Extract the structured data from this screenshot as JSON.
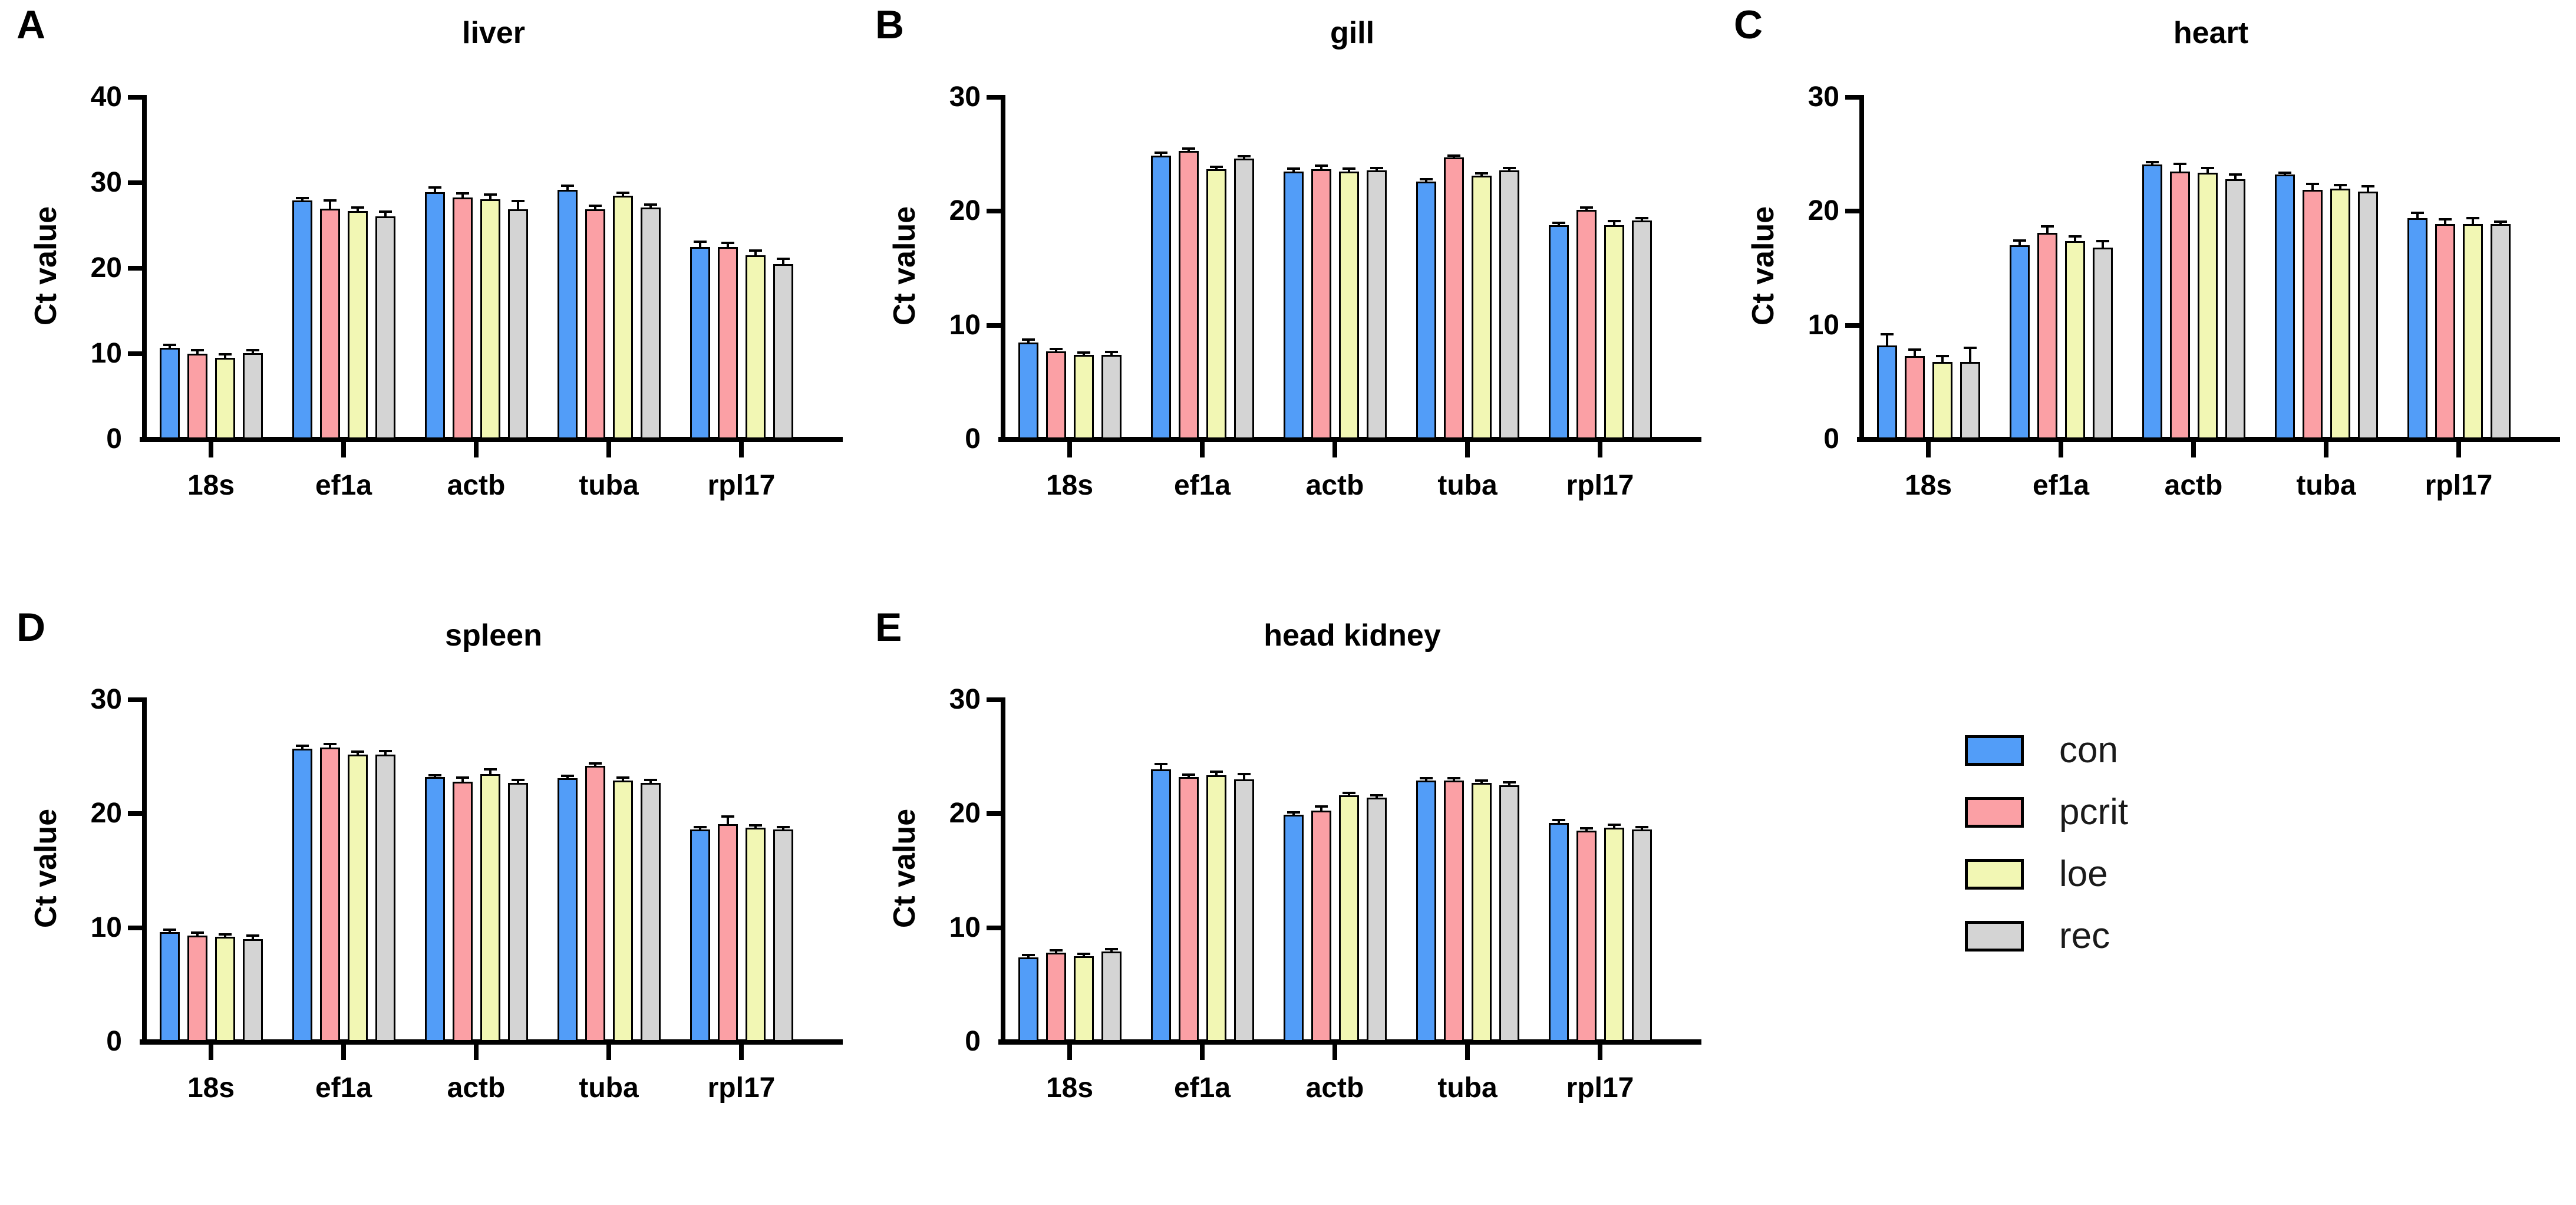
{
  "figure_title": "",
  "legend": {
    "items": [
      {
        "label": "con",
        "color": "#529DF8"
      },
      {
        "label": "pcrit",
        "color": "#FBA0A5"
      },
      {
        "label": "loe",
        "color": "#F2F7B4"
      },
      {
        "label": "rec",
        "color": "#D4D4D4"
      }
    ],
    "border_color": "#000000"
  },
  "chart_data": [
    {
      "type": "bar",
      "letter": "A",
      "title": "liver",
      "ylabel": "Ct value",
      "ylim": [
        0,
        40
      ],
      "yticks": [
        0,
        10,
        20,
        30,
        40
      ],
      "categories": [
        "18s",
        "ef1a",
        "actb",
        "tuba",
        "rpl17"
      ],
      "series": [
        {
          "name": "con",
          "color": "#529DF8",
          "values": [
            10.7,
            27.9,
            28.9,
            29.2,
            22.5
          ],
          "errors": [
            0.2,
            0.2,
            0.4,
            0.3,
            0.5
          ]
        },
        {
          "name": "pcrit",
          "color": "#FBA0A5",
          "values": [
            10.0,
            27.0,
            28.3,
            26.9,
            22.5
          ],
          "errors": [
            0.3,
            0.8,
            0.3,
            0.3,
            0.3
          ]
        },
        {
          "name": "loe",
          "color": "#F2F7B4",
          "values": [
            9.5,
            26.7,
            28.1,
            28.5,
            21.5
          ],
          "errors": [
            0.3,
            0.3,
            0.4,
            0.2,
            0.4
          ]
        },
        {
          "name": "rec",
          "color": "#D4D4D4",
          "values": [
            10.1,
            26.1,
            26.9,
            27.1,
            20.5
          ],
          "errors": [
            0.2,
            0.4,
            0.8,
            0.2,
            0.5
          ]
        }
      ],
      "grid": false,
      "legend_position": "none"
    },
    {
      "type": "bar",
      "letter": "B",
      "title": "gill",
      "ylabel": "Ct value",
      "ylim": [
        0,
        30
      ],
      "yticks": [
        0,
        10,
        20,
        30
      ],
      "categories": [
        "18s",
        "ef1a",
        "actb",
        "tuba",
        "rpl17"
      ],
      "series": [
        {
          "name": "con",
          "color": "#529DF8",
          "values": [
            8.5,
            24.9,
            23.5,
            22.6,
            18.8
          ],
          "errors": [
            0.15,
            0.15,
            0.15,
            0.1,
            0.1
          ]
        },
        {
          "name": "pcrit",
          "color": "#FBA0A5",
          "values": [
            7.7,
            25.3,
            23.7,
            24.7,
            20.1
          ],
          "errors": [
            0.1,
            0.1,
            0.2,
            0.1,
            0.15
          ]
        },
        {
          "name": "loe",
          "color": "#F2F7B4",
          "values": [
            7.4,
            23.7,
            23.5,
            23.1,
            18.8
          ],
          "errors": [
            0.1,
            0.1,
            0.15,
            0.15,
            0.25
          ]
        },
        {
          "name": "rec",
          "color": "#D4D4D4",
          "values": [
            7.4,
            24.6,
            23.6,
            23.6,
            19.2
          ],
          "errors": [
            0.15,
            0.15,
            0.1,
            0.1,
            0.1
          ]
        }
      ],
      "grid": false,
      "legend_position": "none"
    },
    {
      "type": "bar",
      "letter": "C",
      "title": "heart",
      "ylabel": "Ct value",
      "ylim": [
        0,
        30
      ],
      "yticks": [
        0,
        10,
        20,
        30
      ],
      "categories": [
        "18s",
        "ef1a",
        "actb",
        "tuba",
        "rpl17"
      ],
      "series": [
        {
          "name": "con",
          "color": "#529DF8",
          "values": [
            8.2,
            17.0,
            24.1,
            23.2,
            19.4
          ],
          "errors": [
            0.9,
            0.35,
            0.1,
            0.1,
            0.35
          ]
        },
        {
          "name": "pcrit",
          "color": "#FBA0A5",
          "values": [
            7.3,
            18.1,
            23.5,
            21.9,
            18.9
          ],
          "errors": [
            0.45,
            0.45,
            0.55,
            0.4,
            0.3
          ]
        },
        {
          "name": "loe",
          "color": "#F2F7B4",
          "values": [
            6.8,
            17.4,
            23.4,
            22.0,
            18.9
          ],
          "errors": [
            0.4,
            0.3,
            0.3,
            0.2,
            0.4
          ]
        },
        {
          "name": "rec",
          "color": "#D4D4D4",
          "values": [
            6.8,
            16.8,
            22.8,
            21.7,
            18.9
          ],
          "errors": [
            1.1,
            0.5,
            0.3,
            0.4,
            0.1
          ]
        }
      ],
      "grid": false,
      "legend_position": "none"
    },
    {
      "type": "bar",
      "letter": "D",
      "title": "spleen",
      "ylabel": "Ct value",
      "ylim": [
        0,
        30
      ],
      "yticks": [
        0,
        10,
        20,
        30
      ],
      "categories": [
        "18s",
        "ef1a",
        "actb",
        "tuba",
        "rpl17"
      ],
      "series": [
        {
          "name": "con",
          "color": "#529DF8",
          "values": [
            9.6,
            25.7,
            23.2,
            23.1,
            18.6
          ],
          "errors": [
            0.15,
            0.15,
            0.1,
            0.15,
            0.15
          ]
        },
        {
          "name": "pcrit",
          "color": "#FBA0A5",
          "values": [
            9.3,
            25.8,
            22.8,
            24.2,
            19.1
          ],
          "errors": [
            0.15,
            0.2,
            0.25,
            0.1,
            0.55
          ]
        },
        {
          "name": "loe",
          "color": "#F2F7B4",
          "values": [
            9.2,
            25.2,
            23.5,
            22.9,
            18.8
          ],
          "errors": [
            0.1,
            0.15,
            0.3,
            0.15,
            0.1
          ]
        },
        {
          "name": "rec",
          "color": "#D4D4D4",
          "values": [
            9.0,
            25.2,
            22.7,
            22.7,
            18.6
          ],
          "errors": [
            0.2,
            0.2,
            0.15,
            0.15,
            0.1
          ]
        }
      ],
      "grid": false,
      "legend_position": "none"
    },
    {
      "type": "bar",
      "letter": "E",
      "title": "head kidney",
      "ylabel": "Ct value",
      "ylim": [
        0,
        30
      ],
      "yticks": [
        0,
        10,
        20,
        30
      ],
      "categories": [
        "18s",
        "ef1a",
        "actb",
        "tuba",
        "rpl17"
      ],
      "series": [
        {
          "name": "con",
          "color": "#529DF8",
          "values": [
            7.4,
            23.9,
            19.9,
            22.9,
            19.2
          ],
          "errors": [
            0.1,
            0.35,
            0.1,
            0.1,
            0.15
          ]
        },
        {
          "name": "pcrit",
          "color": "#FBA0A5",
          "values": [
            7.8,
            23.2,
            20.3,
            22.9,
            18.5
          ],
          "errors": [
            0.1,
            0.15,
            0.25,
            0.1,
            0.1
          ]
        },
        {
          "name": "loe",
          "color": "#F2F7B4",
          "values": [
            7.5,
            23.4,
            21.6,
            22.7,
            18.8
          ],
          "errors": [
            0.1,
            0.2,
            0.15,
            0.1,
            0.15
          ]
        },
        {
          "name": "rec",
          "color": "#D4D4D4",
          "values": [
            7.9,
            23.0,
            21.4,
            22.5,
            18.6
          ],
          "errors": [
            0.1,
            0.4,
            0.1,
            0.15,
            0.1
          ]
        }
      ],
      "grid": false,
      "legend_position": "none"
    }
  ]
}
